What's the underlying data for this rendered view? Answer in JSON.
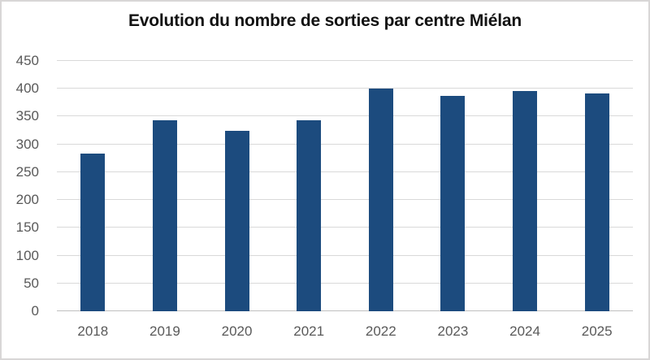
{
  "chart_data": {
    "type": "bar",
    "title": "Evolution du nombre de sorties par centre Miélan",
    "categories": [
      "2018",
      "2019",
      "2020",
      "2021",
      "2022",
      "2023",
      "2024",
      "2025"
    ],
    "values": [
      283,
      343,
      324,
      344,
      401,
      387,
      396,
      392
    ],
    "xlabel": "",
    "ylabel": "",
    "ylim": [
      0,
      450
    ],
    "yticks": [
      0,
      50,
      100,
      150,
      200,
      250,
      300,
      350,
      400,
      450
    ],
    "grid": true,
    "legend": false
  },
  "styles": {
    "bar_color": "#1c4b7e",
    "grid_color": "#d9d9d9",
    "axis_line_color": "#bfbfbf",
    "tick_label_color": "#595959",
    "title_color": "#121212",
    "frame_border_color": "#d8d6d6",
    "background": "#ffffff"
  }
}
